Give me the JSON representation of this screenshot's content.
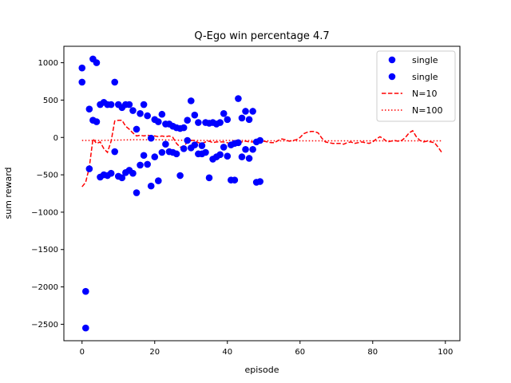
{
  "chart_data": {
    "type": "scatter",
    "title": "Q-Ego win percentage   4.7",
    "xlabel": "episode",
    "ylabel": "sum reward",
    "xlim": [
      -5,
      104
    ],
    "ylim": [
      -2720,
      1220
    ],
    "xticks": [
      0,
      20,
      40,
      60,
      80,
      100
    ],
    "yticks": [
      -2500,
      -2000,
      -1500,
      -1000,
      -500,
      0,
      500,
      1000
    ],
    "ytick_labels": [
      "−2500",
      "−2000",
      "−1500",
      "−1000",
      "−500",
      "0",
      "500",
      "1000"
    ],
    "grid": false,
    "legend_position": "top-right",
    "colors": {
      "points": "#0000ff",
      "n10": "#ff0000",
      "n100": "#ff0000"
    },
    "series": [
      {
        "name": "single",
        "kind": "scatter",
        "x": [
          0,
          1,
          2,
          3,
          4,
          5,
          6,
          7,
          8,
          9,
          10,
          11,
          12,
          13,
          14,
          15,
          16,
          17,
          18,
          19,
          20,
          21,
          22,
          23,
          24,
          25,
          26,
          27,
          28,
          29,
          30,
          31,
          32,
          33,
          34,
          35,
          36,
          37,
          38,
          39,
          40,
          41,
          42,
          43,
          44,
          45,
          46,
          47,
          48,
          49
        ],
        "y": [
          930,
          -2060,
          380,
          1050,
          1000,
          440,
          470,
          440,
          440,
          740,
          440,
          400,
          440,
          440,
          360,
          110,
          320,
          440,
          290,
          -10,
          240,
          210,
          310,
          180,
          180,
          150,
          130,
          120,
          130,
          230,
          490,
          300,
          200,
          -110,
          200,
          190,
          200,
          180,
          200,
          320,
          240,
          -100,
          -80,
          520,
          260,
          350,
          240,
          350,
          -60,
          -40
        ]
      },
      {
        "name": "single",
        "kind": "scatter",
        "x": [
          0,
          1,
          2,
          3,
          4,
          5,
          6,
          7,
          8,
          9,
          10,
          11,
          12,
          13,
          14,
          15,
          16,
          17,
          18,
          19,
          20,
          21,
          22,
          23,
          24,
          25,
          26,
          27,
          28,
          29,
          30,
          31,
          32,
          33,
          34,
          35,
          36,
          37,
          38,
          39,
          40,
          41,
          42,
          43,
          44,
          45,
          46,
          47,
          48,
          49
        ],
        "y": [
          740,
          -2550,
          -420,
          230,
          210,
          -530,
          -500,
          -510,
          -480,
          -190,
          -520,
          -540,
          -470,
          -440,
          -480,
          -740,
          -370,
          -240,
          -360,
          -650,
          -260,
          -580,
          -200,
          -90,
          -190,
          -200,
          -220,
          -510,
          -150,
          -40,
          -140,
          -100,
          -220,
          -220,
          -200,
          -540,
          -290,
          -260,
          -230,
          -130,
          -250,
          -570,
          -570,
          -70,
          -260,
          -160,
          -280,
          -160,
          -600,
          -590
        ]
      },
      {
        "name": "N=10",
        "kind": "line",
        "dash": "dashed",
        "x": [
          0,
          1,
          2,
          3,
          4,
          5,
          6,
          7,
          8,
          9,
          10,
          11,
          12,
          13,
          14,
          15,
          16,
          17,
          18,
          19,
          20,
          21,
          22,
          23,
          24,
          25,
          26,
          27,
          28,
          29,
          30,
          31,
          32,
          33,
          34,
          35,
          36,
          37,
          38,
          39,
          40,
          41,
          42,
          43,
          44,
          45,
          46,
          47,
          48,
          49,
          50,
          51,
          52,
          53,
          54,
          55,
          56,
          57,
          58,
          59,
          60,
          61,
          62,
          63,
          64,
          65,
          66,
          67,
          68,
          69,
          70,
          71,
          72,
          73,
          74,
          75,
          76,
          77,
          78,
          79,
          80,
          81,
          82,
          83,
          84,
          85,
          86,
          87,
          88,
          89,
          90,
          91,
          92,
          93,
          94,
          95,
          96,
          97,
          98,
          99
        ],
        "y": [
          -660,
          -600,
          -400,
          -20,
          -80,
          -60,
          -150,
          -200,
          -50,
          220,
          230,
          230,
          150,
          110,
          60,
          20,
          30,
          20,
          30,
          20,
          20,
          10,
          20,
          10,
          20,
          0,
          -80,
          -130,
          -120,
          -60,
          -40,
          -40,
          -70,
          -80,
          -60,
          -50,
          -70,
          -60,
          -60,
          -60,
          -70,
          -90,
          -80,
          -60,
          -60,
          -50,
          -60,
          -60,
          -50,
          -50,
          -50,
          -60,
          -70,
          -70,
          -40,
          -20,
          -30,
          -50,
          -40,
          -30,
          0,
          50,
          70,
          80,
          80,
          60,
          -10,
          -60,
          -70,
          -80,
          -80,
          -80,
          -90,
          -70,
          -60,
          -80,
          -70,
          -60,
          -70,
          -80,
          -60,
          -20,
          10,
          -20,
          -60,
          -50,
          -40,
          -50,
          -40,
          0,
          60,
          90,
          10,
          -40,
          -60,
          -50,
          -60,
          -70,
          -130,
          -200
        ]
      },
      {
        "name": "N=100",
        "kind": "line",
        "dash": "dotted",
        "x": [
          0,
          5,
          10,
          15,
          20,
          25,
          30,
          35,
          40,
          45,
          50,
          55,
          60,
          65,
          70,
          75,
          80,
          85,
          90,
          95,
          99
        ],
        "y": [
          -40,
          -40,
          -35,
          -30,
          -30,
          -35,
          -40,
          -40,
          -40,
          -40,
          -45,
          -45,
          -45,
          -45,
          -45,
          -45,
          -45,
          -45,
          -45,
          -45,
          -45
        ]
      }
    ]
  }
}
